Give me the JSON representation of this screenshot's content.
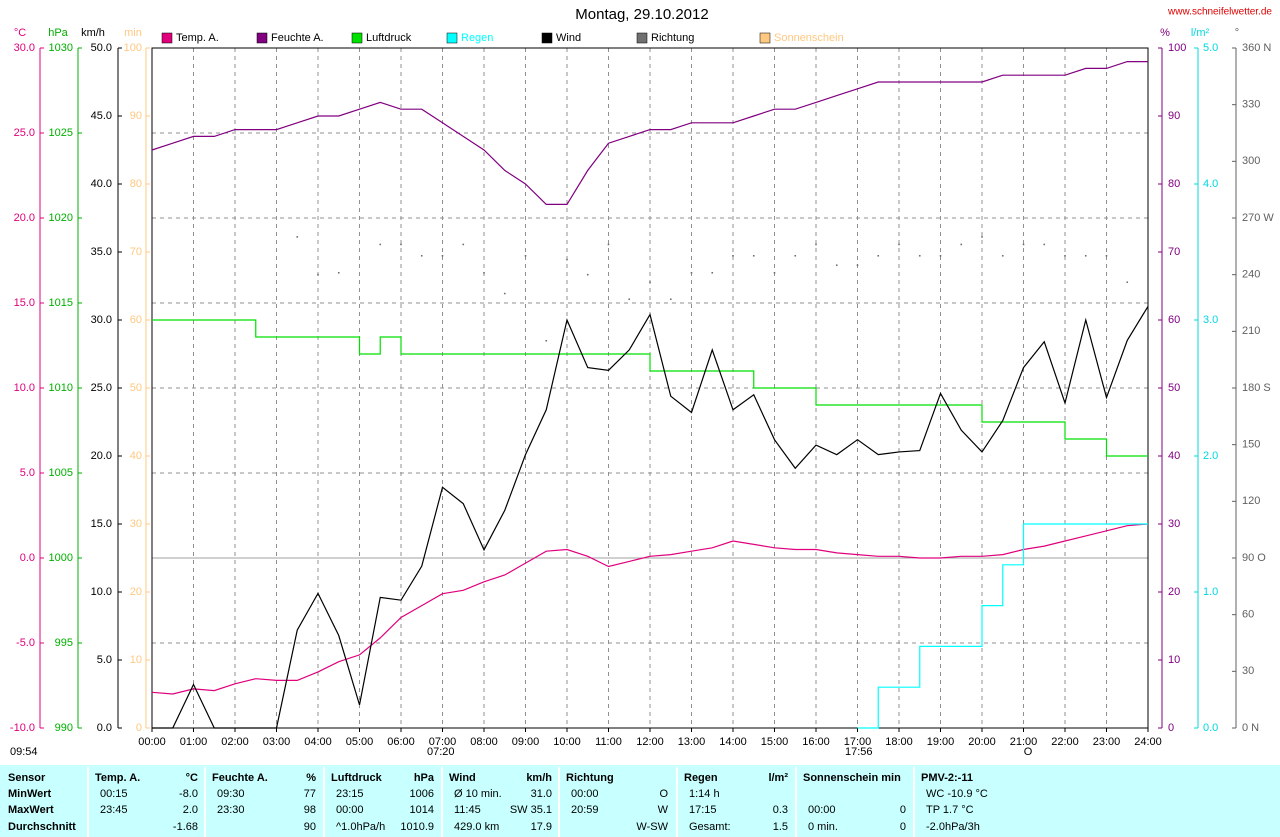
{
  "chart_data": {
    "type": "line",
    "title": "Montag, 29.10.2012",
    "source": "www.schneifelwetter.de",
    "annotations": [
      "09:54",
      "07:20",
      "17:56",
      "O"
    ],
    "x": [
      0,
      0.5,
      1,
      1.5,
      2,
      2.5,
      3,
      3.5,
      4,
      4.5,
      5,
      5.5,
      6,
      6.5,
      7,
      7.5,
      8,
      8.5,
      9,
      9.5,
      10,
      10.5,
      11,
      11.5,
      12,
      12.5,
      13,
      13.5,
      14,
      14.5,
      15,
      15.5,
      16,
      16.5,
      17,
      17.5,
      18,
      18.5,
      19,
      19.5,
      20,
      20.5,
      21,
      21.5,
      22,
      22.5,
      23,
      23.5,
      24
    ],
    "xlim": [
      0,
      24
    ],
    "xticks": [
      {
        "value": 0,
        "label": "00:00"
      },
      {
        "value": 1,
        "label": "01:00"
      },
      {
        "value": 2,
        "label": "02:00"
      },
      {
        "value": 3,
        "label": "03:00"
      },
      {
        "value": 4,
        "label": "04:00"
      },
      {
        "value": 5,
        "label": "05:00"
      },
      {
        "value": 6,
        "label": "06:00"
      },
      {
        "value": 7,
        "label": "07:00"
      },
      {
        "value": 8,
        "label": "08:00"
      },
      {
        "value": 9,
        "label": "09:00"
      },
      {
        "value": 10,
        "label": "10:00"
      },
      {
        "value": 11,
        "label": "11:00"
      },
      {
        "value": 12,
        "label": "12:00"
      },
      {
        "value": 13,
        "label": "13:00"
      },
      {
        "value": 14,
        "label": "14:00"
      },
      {
        "value": 15,
        "label": "15:00"
      },
      {
        "value": 16,
        "label": "16:00"
      },
      {
        "value": 17,
        "label": "17:00"
      },
      {
        "value": 18,
        "label": "18:00"
      },
      {
        "value": 19,
        "label": "19:00"
      },
      {
        "value": 20,
        "label": "20:00"
      },
      {
        "value": 21,
        "label": "21:00"
      },
      {
        "value": 22,
        "label": "22:00"
      },
      {
        "value": 23,
        "label": "23:00"
      },
      {
        "value": 24,
        "label": "24:00"
      }
    ],
    "grid": true,
    "axes": [
      {
        "unit": "°C",
        "color": "#e0007c",
        "ylim": [
          -10,
          30
        ],
        "yticks": [
          {
            "value": -10,
            "label": "-10.0"
          },
          {
            "value": -5,
            "label": "-5.0"
          },
          {
            "value": 0,
            "label": "0.0"
          },
          {
            "value": 5,
            "label": "5.0"
          },
          {
            "value": 10,
            "label": "10.0"
          },
          {
            "value": 15,
            "label": "15.0"
          },
          {
            "value": 20,
            "label": "20.0"
          },
          {
            "value": 25,
            "label": "25.0"
          },
          {
            "value": 30,
            "label": "30.0"
          }
        ]
      },
      {
        "unit": "hPa",
        "color": "#00b000",
        "ylim": [
          990,
          1030
        ],
        "yticks": [
          990,
          995,
          1000,
          1005,
          1010,
          1015,
          1020,
          1025,
          1030
        ]
      },
      {
        "unit": "km/h",
        "color": "#000000",
        "ylim": [
          0,
          50
        ],
        "yticks": [
          {
            "value": 0,
            "label": "0.0"
          },
          {
            "value": 5,
            "label": "5.0"
          },
          {
            "value": 10,
            "label": "10.0"
          },
          {
            "value": 15,
            "label": "15.0"
          },
          {
            "value": 20,
            "label": "20.0"
          },
          {
            "value": 25,
            "label": "25.0"
          },
          {
            "value": 30,
            "label": "30.0"
          },
          {
            "value": 35,
            "label": "35.0"
          },
          {
            "value": 40,
            "label": "40.0"
          },
          {
            "value": 45,
            "label": "45.0"
          },
          {
            "value": 50,
            "label": "50.0"
          }
        ]
      },
      {
        "unit": "min",
        "color": "#ffc880",
        "ylim": [
          0,
          100
        ],
        "yticks": [
          0,
          10,
          20,
          30,
          40,
          50,
          60,
          70,
          80,
          90,
          100
        ]
      },
      {
        "unit": "%",
        "color": "#800080",
        "ylim": [
          0,
          100
        ],
        "yticks": [
          0,
          10,
          20,
          30,
          40,
          50,
          60,
          70,
          80,
          90,
          100
        ]
      },
      {
        "unit": "l/m²",
        "color": "#00d8e0",
        "ylim": [
          0,
          5
        ],
        "yticks": [
          {
            "value": 0,
            "label": "0.0"
          },
          {
            "value": 1,
            "label": "1.0"
          },
          {
            "value": 2,
            "label": "2.0"
          },
          {
            "value": 3,
            "label": "3.0"
          },
          {
            "value": 4,
            "label": "4.0"
          },
          {
            "value": 5,
            "label": "5.0"
          }
        ]
      },
      {
        "unit": "°",
        "color": "#606060",
        "ylim": [
          0,
          360
        ],
        "yticks": [
          {
            "value": 0,
            "label": "0 N"
          },
          30,
          60,
          {
            "value": 90,
            "label": "90 O"
          },
          120,
          150,
          {
            "value": 180,
            "label": "180 S"
          },
          210,
          240,
          {
            "value": 270,
            "label": "270 W"
          },
          300,
          330,
          {
            "value": 360,
            "label": "360 N"
          }
        ]
      }
    ],
    "series": [
      {
        "name": "Temp. A.",
        "color": "#e0007c",
        "axis": "°C",
        "style": "line",
        "values": [
          -7.9,
          -8.0,
          -7.7,
          -7.8,
          -7.4,
          -7.1,
          -7.2,
          -7.2,
          -6.7,
          -6.1,
          -5.7,
          -4.7,
          -3.5,
          -2.8,
          -2.1,
          -1.9,
          -1.4,
          -1.0,
          -0.3,
          0.4,
          0.5,
          0.1,
          -0.5,
          -0.2,
          0.1,
          0.2,
          0.4,
          0.6,
          1.0,
          0.8,
          0.6,
          0.5,
          0.5,
          0.3,
          0.2,
          0.1,
          0.1,
          0.0,
          0.0,
          0.1,
          0.1,
          0.2,
          0.5,
          0.7,
          1.0,
          1.3,
          1.6,
          1.9,
          2.0
        ]
      },
      {
        "name": "Feuchte A.",
        "color": "#800080",
        "axis": "%",
        "style": "line",
        "values": [
          85,
          86,
          87,
          87,
          88,
          88,
          88,
          89,
          90,
          90,
          91,
          92,
          91,
          91,
          89,
          87,
          85,
          82,
          80,
          77,
          77,
          82,
          86,
          87,
          88,
          88,
          89,
          89,
          89,
          90,
          91,
          91,
          92,
          93,
          94,
          95,
          95,
          95,
          95,
          95,
          95,
          96,
          96,
          96,
          96,
          97,
          97,
          98,
          98
        ]
      },
      {
        "name": "Luftdruck",
        "color": "#00e000",
        "axis": "hPa",
        "style": "step",
        "values": [
          1014,
          1014,
          1014,
          1014,
          1014,
          1013,
          1013,
          1013,
          1013,
          1013,
          1012,
          1013,
          1012,
          1012,
          1012,
          1012,
          1012,
          1012,
          1012,
          1012,
          1012,
          1012,
          1012,
          1012,
          1011,
          1011,
          1011,
          1011,
          1011,
          1010,
          1010,
          1010,
          1009,
          1009,
          1009,
          1009,
          1009,
          1009,
          1009,
          1009,
          1008,
          1008,
          1008,
          1008,
          1007,
          1007,
          1006,
          1006,
          1006
        ]
      },
      {
        "name": "Regen",
        "color": "#00ffff",
        "axis": "l/m²",
        "style": "step",
        "values": [
          null,
          null,
          null,
          null,
          null,
          null,
          null,
          null,
          null,
          null,
          null,
          null,
          null,
          null,
          null,
          null,
          null,
          null,
          null,
          null,
          null,
          null,
          null,
          null,
          null,
          null,
          null,
          null,
          null,
          null,
          null,
          null,
          null,
          null,
          0,
          0.3,
          0.3,
          0.6,
          0.6,
          0.6,
          0.9,
          1.2,
          1.5,
          1.5,
          1.5,
          1.5,
          1.5,
          1.5,
          1.5
        ]
      },
      {
        "name": "Wind",
        "color": "#000000",
        "axis": "km/h",
        "style": "line",
        "values": [
          0,
          0,
          3.2,
          0,
          0,
          0,
          0,
          7.2,
          9.9,
          6.8,
          1.7,
          9.6,
          9.4,
          11.9,
          17.7,
          16.5,
          13.1,
          16.0,
          20.1,
          23.4,
          30.0,
          26.5,
          26.3,
          27.8,
          30.4,
          24.4,
          23.2,
          27.8,
          23.4,
          24.5,
          21.2,
          19.1,
          20.8,
          20.1,
          21.2,
          20.1,
          20.3,
          20.4,
          24.6,
          21.9,
          20.3,
          22.6,
          26.5,
          28.4,
          23.9,
          30.0,
          24.3,
          28.5,
          31.0
        ]
      },
      {
        "name": "Richtung",
        "color": "#707070",
        "axis": "°",
        "style": "dots",
        "values": [
          null,
          null,
          null,
          null,
          null,
          null,
          null,
          260,
          240,
          241,
          null,
          256,
          256,
          250,
          250,
          256,
          241,
          230,
          250,
          205,
          248,
          240,
          256,
          227,
          236,
          227,
          241,
          241,
          250,
          250,
          241,
          250,
          256,
          245,
          245,
          250,
          256,
          250,
          250,
          256,
          260,
          250,
          256,
          256,
          250,
          250,
          250,
          236,
          null
        ]
      },
      {
        "name": "Sonnenschein",
        "color": "#ffc880",
        "axis": "min",
        "style": "none"
      }
    ]
  },
  "table": {
    "row_labels": [
      "Sensor",
      "MinWert",
      "MaxWert",
      "Durchschnitt"
    ],
    "groups": [
      {
        "head": [
          "Temp. A.",
          "°C"
        ],
        "cells": [
          [
            "00:15",
            "-8.0"
          ],
          [
            "23:45",
            "2.0"
          ],
          [
            null,
            "-1.68"
          ]
        ]
      },
      {
        "head": [
          "Feuchte A.",
          "%"
        ],
        "cells": [
          [
            "09:30",
            "77"
          ],
          [
            "23:30",
            "98"
          ],
          [
            null,
            "90"
          ]
        ]
      },
      {
        "head": [
          "Luftdruck",
          "hPa"
        ],
        "cells": [
          [
            "23:15",
            "1006"
          ],
          [
            "00:00",
            "1014"
          ],
          [
            "^1.0hPa/h",
            "1010.9"
          ]
        ]
      },
      {
        "head": [
          "Wind",
          "km/h"
        ],
        "cells": [
          [
            "Ø 10 min.",
            "31.0"
          ],
          [
            "11:45",
            "SW 35.1"
          ],
          [
            "429.0 km",
            "17.9"
          ]
        ]
      },
      {
        "head": [
          "Richtung",
          null
        ],
        "cells": [
          [
            "00:00",
            "O"
          ],
          [
            "20:59",
            "W"
          ],
          [
            null,
            "W-SW"
          ]
        ]
      },
      {
        "head": [
          "Regen",
          "l/m²"
        ],
        "cells": [
          [
            "1:14 h",
            null
          ],
          [
            "17:15",
            "0.3"
          ],
          [
            "Gesamt:",
            "1.5"
          ]
        ]
      },
      {
        "head": [
          "Sonnenschein min",
          null
        ],
        "cells": [
          [
            null,
            null
          ],
          [
            "00:00",
            "0"
          ],
          [
            "0 min.",
            "0"
          ]
        ]
      },
      {
        "head": [
          "PMV-2:-11",
          null
        ],
        "cells": [
          [
            "WC -10.9 °C",
            null
          ],
          [
            "TP 1.7 °C",
            null
          ],
          [
            "-2.0hPa/3h",
            null
          ]
        ]
      }
    ]
  }
}
